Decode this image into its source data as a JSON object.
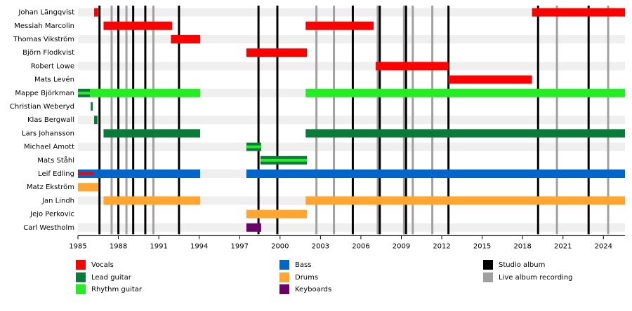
{
  "chart_data": {
    "type": "timeline",
    "xlim": [
      1985,
      2025.6
    ],
    "xticks": [
      1985,
      1988,
      1991,
      1994,
      1997,
      2000,
      2003,
      2006,
      2009,
      2012,
      2015,
      2018,
      2021,
      2024
    ],
    "roles": [
      {
        "name": "Vocals",
        "color": "#ff0000"
      },
      {
        "name": "Lead guitar",
        "color": "#0a7a3a"
      },
      {
        "name": "Rhythm guitar",
        "color": "#22ee22"
      },
      {
        "name": "Bass",
        "color": "#0066cc"
      },
      {
        "name": "Drums",
        "color": "#ffa530"
      },
      {
        "name": "Keyboards",
        "color": "#6a006a"
      }
    ],
    "albums": [
      {
        "name": "Studio album",
        "color": "#000000",
        "years": [
          1986.6,
          1988.0,
          1989.1,
          1990.0,
          1992.5,
          1998.4,
          1999.8,
          2005.4,
          2007.4,
          2009.35,
          2012.5,
          2019.15,
          2022.9
        ]
      },
      {
        "name": "Live album recording",
        "color": "#a0a0a0",
        "years": [
          1987.5,
          1988.6,
          1990.6,
          2002.7,
          2004.0,
          2007.25,
          2009.2,
          2009.85,
          2011.3,
          2020.55,
          2024.35
        ]
      }
    ],
    "members": [
      {
        "name": "Johan Längqvist",
        "roles": {
          "Vocals": [
            [
              1986.2,
              1986.5
            ],
            [
              2018.7,
              2025.6
            ]
          ]
        }
      },
      {
        "name": "Messiah Marcolin",
        "roles": {
          "Vocals": [
            [
              1986.9,
              1992.0
            ],
            [
              2001.9,
              2006.95
            ]
          ]
        }
      },
      {
        "name": "Thomas Vikström",
        "roles": {
          "Vocals": [
            [
              1991.9,
              1994.07
            ]
          ]
        }
      },
      {
        "name": "Björn Flodkvist",
        "roles": {
          "Vocals": [
            [
              1997.5,
              2002.0
            ]
          ]
        }
      },
      {
        "name": "Robert Lowe",
        "roles": {
          "Vocals": [
            [
              2007.1,
              2012.5
            ]
          ]
        }
      },
      {
        "name": "Mats Levén",
        "roles": {
          "Vocals": [
            [
              2012.5,
              2018.7
            ]
          ]
        }
      },
      {
        "name": "Mappe Björkman",
        "roles": {
          "Lead guitar": [
            [
              1985,
              1985.9
            ]
          ],
          "Rhythm guitar": [
            [
              1985.9,
              1994.07
            ],
            [
              2001.9,
              2025.6
            ]
          ]
        },
        "stripes": {
          "Rhythm guitar": [
            [
              1985,
              1985.9
            ]
          ]
        }
      },
      {
        "name": "Christian Weberyd",
        "roles": {
          "Lead guitar": [
            [
              1985.95,
              1986.1
            ]
          ]
        }
      },
      {
        "name": "Klas Bergwall",
        "roles": {
          "Lead guitar": [
            [
              1986.2,
              1986.45
            ]
          ]
        }
      },
      {
        "name": "Lars Johansson",
        "roles": {
          "Lead guitar": [
            [
              1986.9,
              1994.07
            ],
            [
              2001.9,
              2025.6
            ]
          ]
        }
      },
      {
        "name": "Michael Amott",
        "roles": {
          "Lead guitar": [
            [
              1997.5,
              1998.6
            ]
          ]
        },
        "stripes": {
          "Rhythm guitar": [
            [
              1997.5,
              1998.6
            ]
          ]
        }
      },
      {
        "name": "Mats Ståhl",
        "roles": {
          "Lead guitar": [
            [
              1998.55,
              2002.0
            ]
          ]
        },
        "stripes": {
          "Rhythm guitar": [
            [
              1998.55,
              2002.0
            ]
          ]
        }
      },
      {
        "name": "Leif Edling",
        "roles": {
          "Bass": [
            [
              1985,
              1994.07
            ],
            [
              1997.5,
              2025.6
            ]
          ]
        },
        "stripes": {
          "Vocals": [
            [
              1985,
              1986.2
            ]
          ]
        }
      },
      {
        "name": "Matz Ekström",
        "roles": {
          "Drums": [
            [
              1985,
              1986.5
            ]
          ]
        }
      },
      {
        "name": "Jan Lindh",
        "roles": {
          "Drums": [
            [
              1986.9,
              1994.07
            ],
            [
              2001.9,
              2025.6
            ]
          ]
        }
      },
      {
        "name": "Jejo Perkovic",
        "roles": {
          "Drums": [
            [
              1997.5,
              2002.0
            ]
          ]
        }
      },
      {
        "name": "Carl Westholm",
        "roles": {
          "Keyboards": [
            [
              1997.5,
              1998.6
            ]
          ]
        }
      }
    ]
  }
}
